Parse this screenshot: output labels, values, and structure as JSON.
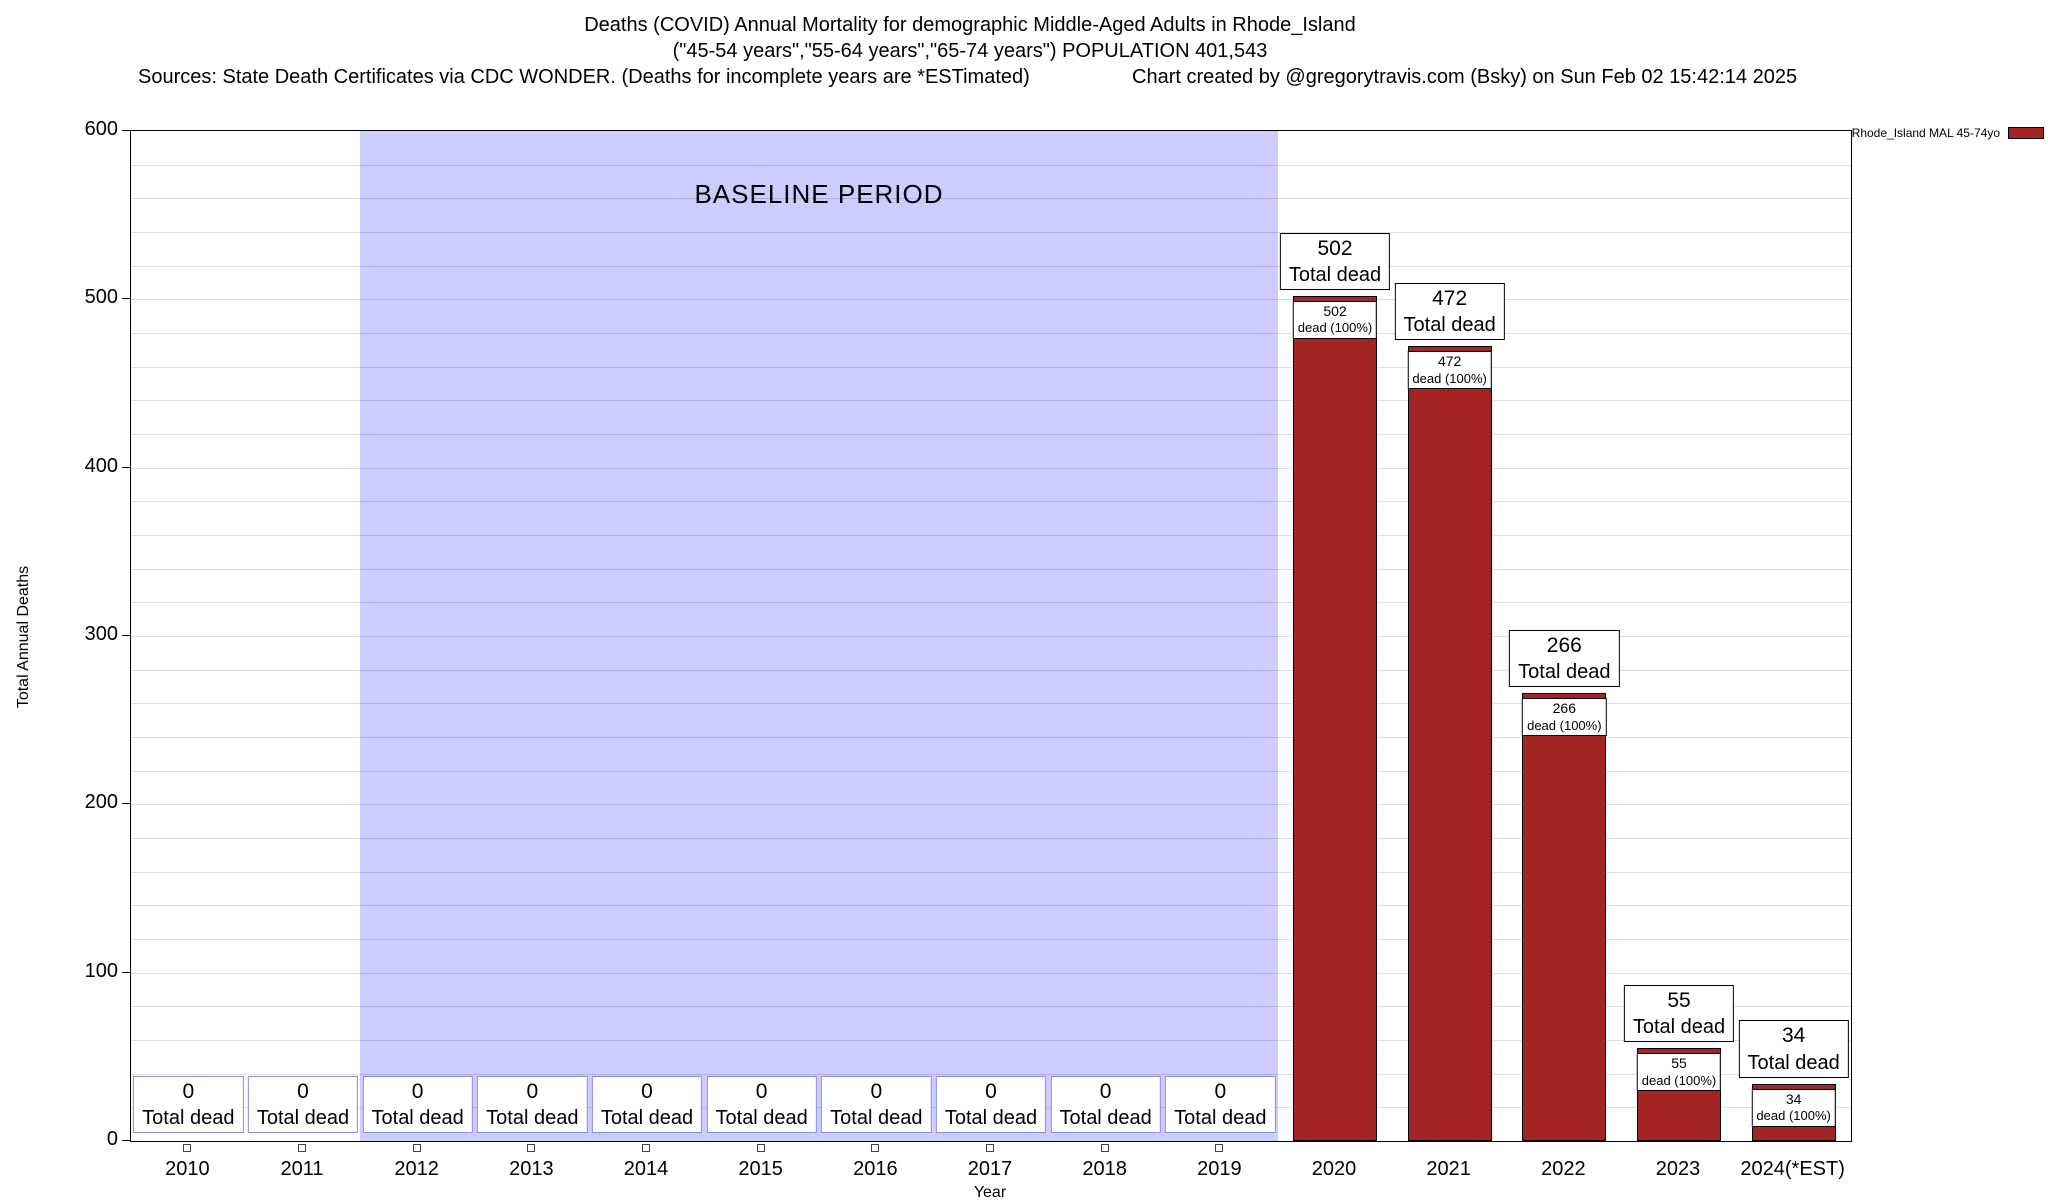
{
  "header": {
    "title_line1": "Deaths (COVID) Annual Mortality for demographic Middle-Aged Adults in Rhode_Island",
    "title_line2": "(\"45-54 years\",\"55-64 years\",\"65-74 years\") POPULATION 401,543",
    "sources_line": "Sources: State Death Certificates via CDC WONDER. (Deaths for incomplete years are *ESTimated)",
    "credit_line": "Chart created by @gregorytravis.com (Bsky) on Sun Feb 02 15:42:14 2025"
  },
  "legend": {
    "label": "Rhode_Island MAL 45-74yo"
  },
  "chart_data": {
    "type": "bar",
    "title": "Deaths (COVID) Annual Mortality for demographic Middle-Aged Adults in Rhode_Island",
    "xlabel": "Year",
    "ylabel": "Total Annual Deaths",
    "ylim": [
      0,
      600
    ],
    "y_ticks": [
      0,
      100,
      200,
      300,
      400,
      500,
      600
    ],
    "grid_interval": 20,
    "categories": [
      "2010",
      "2011",
      "2012",
      "2013",
      "2014",
      "2015",
      "2016",
      "2017",
      "2018",
      "2019",
      "2020",
      "2021",
      "2022",
      "2023",
      "2024(*EST)"
    ],
    "values": [
      0,
      0,
      0,
      0,
      0,
      0,
      0,
      0,
      0,
      0,
      502,
      472,
      266,
      55,
      34
    ],
    "series_name": "Rhode_Island MAL 45-74yo",
    "bar_color": "#a22424",
    "grid_on": true,
    "legend_position": "top-right",
    "bar_label_top_suffix": "Total dead",
    "bar_inner_label_suffix": "dead (100%)",
    "zero_box_border": "#8888dd",
    "baseline_period": {
      "label": "BASELINE PERIOD",
      "start_category": "2012",
      "end_category": "2019",
      "color": "#ccccff"
    }
  }
}
